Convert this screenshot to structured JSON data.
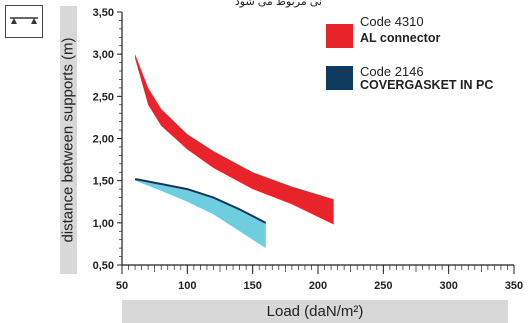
{
  "header_text": "نی مربوط می شود",
  "chart_data": {
    "type": "area",
    "xlabel": "Load (daN/m²)",
    "ylabel": "distance between supports (m)",
    "xlim": [
      50,
      350
    ],
    "ylim": [
      0.5,
      3.5
    ],
    "x_ticks": [
      50,
      100,
      150,
      200,
      250,
      300,
      350
    ],
    "y_ticks": [
      0.5,
      1.0,
      1.5,
      2.0,
      2.5,
      3.0,
      3.5
    ],
    "x_tick_labels": [
      "50",
      "100",
      "150",
      "200",
      "250",
      "300",
      "350"
    ],
    "y_tick_labels": [
      "0,50",
      "1,00",
      "1,50",
      "2,00",
      "2,50",
      "3,00",
      "3,50"
    ],
    "grid": false,
    "legend_position": "top-right",
    "series": [
      {
        "name": "Code 4310",
        "label": "AL connector",
        "color": "#e8232a",
        "x": [
          60,
          70,
          80,
          100,
          120,
          150,
          180,
          212
        ],
        "upper": [
          3.0,
          2.6,
          2.35,
          2.05,
          1.85,
          1.6,
          1.43,
          1.28
        ],
        "lower": [
          2.95,
          2.4,
          2.15,
          1.87,
          1.65,
          1.4,
          1.22,
          0.98
        ]
      },
      {
        "name": "Code 2146",
        "label": "COVERGASKET IN PC",
        "color": "#6fcde0",
        "line_color": "#0d3a5e",
        "x": [
          60,
          80,
          100,
          120,
          140,
          160
        ],
        "upper": [
          1.52,
          1.46,
          1.4,
          1.3,
          1.16,
          1.0
        ],
        "lower": [
          1.5,
          1.38,
          1.25,
          1.1,
          0.9,
          0.7
        ]
      }
    ]
  }
}
